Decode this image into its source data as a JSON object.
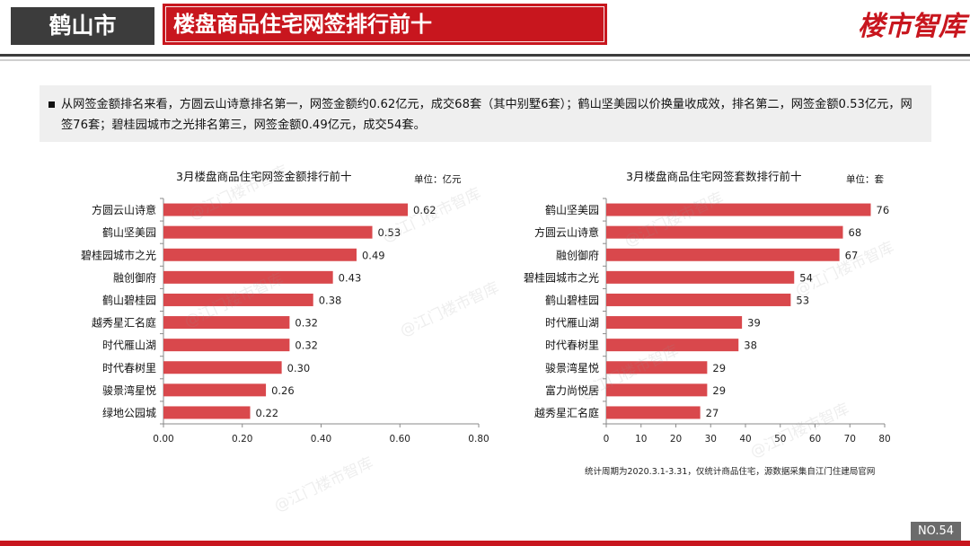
{
  "header": {
    "city": "鹤山市",
    "title": "楼盘商品住宅网签排行前十",
    "logo_text": "楼市智库"
  },
  "summary": {
    "text": "从网签金额排名来看，方圆云山诗意排名第一，网签金额约0.62亿元，成交68套（其中别墅6套）；鹤山坚美园以价换量收成效，排名第二，网签金额0.53亿元，网签76套；碧桂园城市之光排名第三，网签金额0.49亿元，成交54套。"
  },
  "watermark": "@江门楼市智库",
  "chart_data": [
    {
      "type": "bar",
      "orientation": "horizontal",
      "title": "3月楼盘商品住宅网签金额排行前十",
      "unit": "单位：亿元",
      "categories": [
        "方圆云山诗意",
        "鹤山坚美园",
        "碧桂园城市之光",
        "融创御府",
        "鹤山碧桂园",
        "越秀星汇名庭",
        "时代雁山湖",
        "时代春树里",
        "骏景湾星悦",
        "绿地公园城"
      ],
      "values": [
        0.62,
        0.53,
        0.49,
        0.43,
        0.38,
        0.32,
        0.32,
        0.3,
        0.26,
        0.22
      ],
      "value_labels": [
        "0.62",
        "0.53",
        "0.49",
        "0.43",
        "0.38",
        "0.32",
        "0.32",
        "0.30",
        "0.26",
        "0.22"
      ],
      "xlim": [
        0,
        0.8
      ],
      "xticks": [
        "0.00",
        "0.20",
        "0.40",
        "0.60",
        "0.80"
      ],
      "bar_color": "#d9484c",
      "grid": false
    },
    {
      "type": "bar",
      "orientation": "horizontal",
      "title": "3月楼盘商品住宅网签套数排行前十",
      "unit": "单位：套",
      "categories": [
        "鹤山坚美园",
        "方圆云山诗意",
        "融创御府",
        "碧桂园城市之光",
        "鹤山碧桂园",
        "时代雁山湖",
        "时代春树里",
        "骏景湾星悦",
        "富力尚悦居",
        "越秀星汇名庭"
      ],
      "values": [
        76,
        68,
        67,
        54,
        53,
        39,
        38,
        29,
        29,
        27
      ],
      "value_labels": [
        "76",
        "68",
        "67",
        "54",
        "53",
        "39",
        "38",
        "29",
        "29",
        "27"
      ],
      "xlim": [
        0,
        80
      ],
      "xticks": [
        "0",
        "10",
        "20",
        "30",
        "40",
        "50",
        "60",
        "70",
        "80"
      ],
      "bar_color": "#d9484c",
      "grid": false
    }
  ],
  "footer": {
    "note": "统计周期为2020.3.1-3.31，仅统计商品住宅，源数据采集自江门住建局官网",
    "page": "NO.54"
  },
  "colors": {
    "brand_red": "#c8161e",
    "dark": "#3c3c3c",
    "summary_bg": "#efefef"
  }
}
